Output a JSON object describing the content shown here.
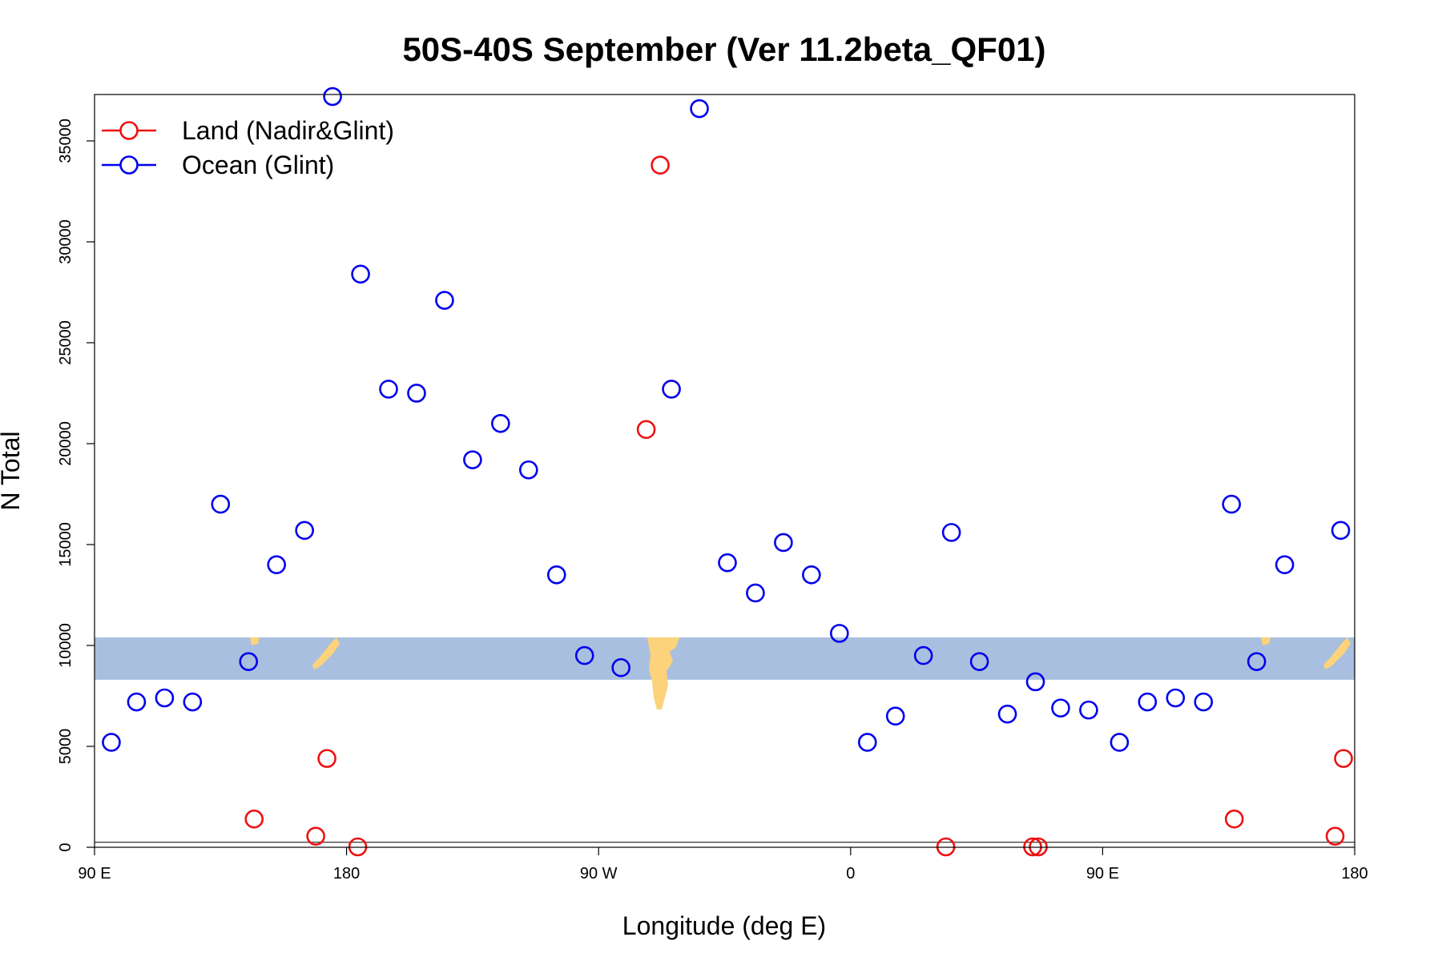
{
  "chart_data": {
    "type": "scatter",
    "title": "50S-40S September (Ver 11.2beta_QF01)",
    "xlabel": "Longitude (deg E)",
    "ylabel": "N Total",
    "xlim": [
      90,
      540
    ],
    "ylim": [
      0,
      37300
    ],
    "x_ticks": [
      {
        "value": 90,
        "label": "90 E"
      },
      {
        "value": 180,
        "label": "180"
      },
      {
        "value": 270,
        "label": "90 W"
      },
      {
        "value": 360,
        "label": "0"
      },
      {
        "value": 450,
        "label": "90 E"
      },
      {
        "value": 540,
        "label": "180"
      }
    ],
    "y_ticks": [
      {
        "value": 0,
        "label": "0"
      },
      {
        "value": 5000,
        "label": "5000"
      },
      {
        "value": 10000,
        "label": "10000"
      },
      {
        "value": 15000,
        "label": "15000"
      },
      {
        "value": 20000,
        "label": "20000"
      },
      {
        "value": 25000,
        "label": "25000"
      },
      {
        "value": 30000,
        "label": "30000"
      },
      {
        "value": 35000,
        "label": "35000"
      }
    ],
    "grid": false,
    "legend": {
      "position": "top-left"
    },
    "background_band": {
      "y_range": [
        8300,
        10400
      ],
      "color": "#a9bfdf",
      "land_color": "#fcd27a"
    },
    "reference_line": {
      "y": 250
    },
    "series": [
      {
        "name": "Land (Nadir&Glint)",
        "color": "#ee1111",
        "x": [
          147,
          169,
          173,
          184,
          287,
          292,
          394,
          425,
          427,
          497,
          533,
          536
        ],
        "y": [
          1400,
          550,
          4400,
          20,
          20700,
          33800,
          20,
          20,
          20,
          1400,
          550,
          4400
        ]
      },
      {
        "name": "Ocean (Glint)",
        "color": "#0000ee",
        "x": [
          96,
          105,
          115,
          125,
          135,
          145,
          155,
          165,
          175,
          185,
          195,
          205,
          215,
          225,
          235,
          245,
          255,
          265,
          278,
          296,
          306,
          316,
          326,
          336,
          346,
          356,
          366,
          376,
          386,
          396,
          406,
          416,
          426,
          435,
          445,
          456,
          466,
          476,
          486,
          496,
          505,
          515,
          535
        ],
        "y": [
          5200,
          7200,
          7400,
          7200,
          17000,
          9200,
          14000,
          15700,
          37200,
          28400,
          22700,
          22500,
          27100,
          19200,
          21000,
          18700,
          13500,
          9500,
          8900,
          22700,
          36600,
          14100,
          12600,
          15100,
          13500,
          10600,
          5200,
          6500,
          9500,
          15600,
          9200,
          6600,
          8200,
          6900,
          6800,
          5200,
          7200,
          7400,
          7200,
          17000,
          9200,
          14000,
          15700
        ]
      }
    ]
  }
}
